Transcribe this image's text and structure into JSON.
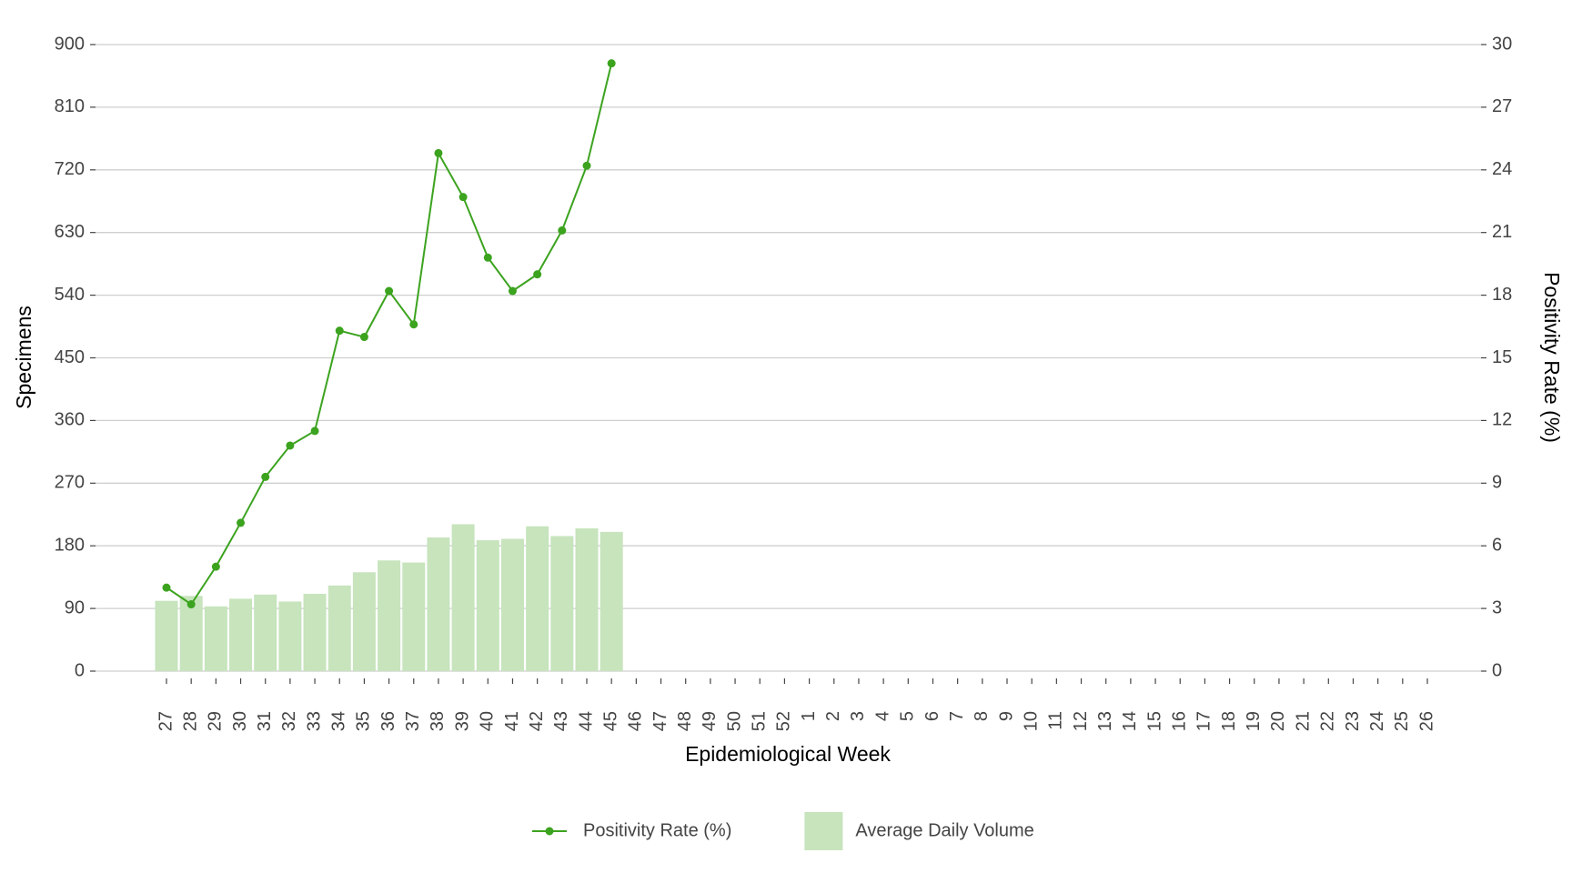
{
  "chart_data": {
    "type": "bar+line",
    "x_label": "Epidemiological Week",
    "y_label": "Specimens",
    "y2_label": "Positivity Rate (%)",
    "categories": [
      "27",
      "28",
      "29",
      "30",
      "31",
      "32",
      "33",
      "34",
      "35",
      "36",
      "37",
      "38",
      "39",
      "40",
      "41",
      "42",
      "43",
      "44",
      "45",
      "46",
      "47",
      "48",
      "49",
      "50",
      "51",
      "52",
      "1",
      "2",
      "3",
      "4",
      "5",
      "6",
      "7",
      "8",
      "9",
      "10",
      "11",
      "12",
      "13",
      "14",
      "15",
      "16",
      "17",
      "18",
      "19",
      "20",
      "21",
      "22",
      "23",
      "24",
      "25",
      "26"
    ],
    "series": [
      {
        "name": "Positivity Rate (%)",
        "type": "line",
        "axis": "y2",
        "color": "#3ca31f",
        "values": [
          4.0,
          3.2,
          5.0,
          7.1,
          9.3,
          10.8,
          11.5,
          16.3,
          16.0,
          18.2,
          16.6,
          24.8,
          22.7,
          19.8,
          18.2,
          19.0,
          21.1,
          24.2,
          29.1,
          null,
          null,
          null,
          null,
          null,
          null,
          null,
          null,
          null,
          null,
          null,
          null,
          null,
          null,
          null,
          null,
          null,
          null,
          null,
          null,
          null,
          null,
          null,
          null,
          null,
          null,
          null,
          null,
          null,
          null,
          null,
          null,
          null
        ]
      },
      {
        "name": "Average Daily Volume",
        "type": "bar",
        "color": "#c7e4bd",
        "values": [
          101,
          108,
          93,
          104,
          110,
          100,
          111,
          123,
          142,
          159,
          156,
          192,
          211,
          188,
          190,
          208,
          194,
          205,
          200,
          null,
          null,
          null,
          null,
          null,
          null,
          null,
          null,
          null,
          null,
          null,
          null,
          null,
          null,
          null,
          null,
          null,
          null,
          null,
          null,
          null,
          null,
          null,
          null,
          null,
          null,
          null,
          null,
          null,
          null,
          null,
          null,
          null
        ]
      }
    ],
    "ylim": [
      0,
      900
    ],
    "yticks": [
      0,
      90,
      180,
      270,
      360,
      450,
      540,
      630,
      720,
      810,
      900
    ],
    "y2lim": [
      0,
      30
    ],
    "y2ticks": [
      0,
      3,
      6,
      9,
      12,
      15,
      18,
      21,
      24,
      27,
      30
    ],
    "grid": true,
    "legend": "bottom"
  }
}
